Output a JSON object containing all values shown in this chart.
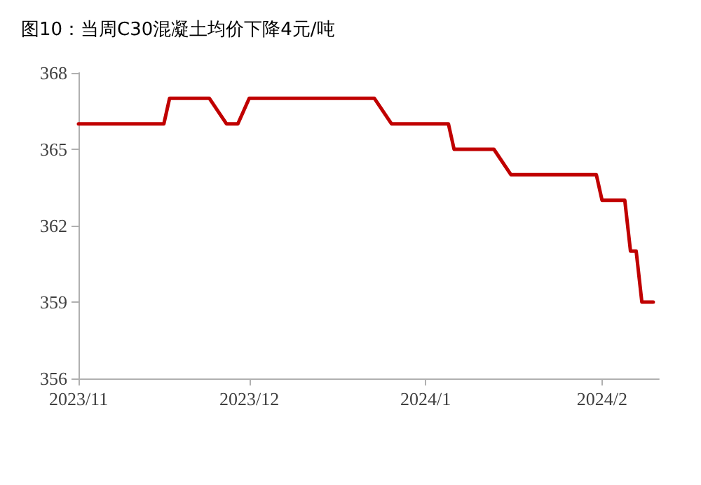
{
  "chart_data": {
    "type": "line",
    "title": "图10：当周C30混凝土均价下降4元/吨",
    "x": [
      "2023-11-01",
      "2023-11-16",
      "2023-11-17",
      "2023-11-24",
      "2023-11-27",
      "2023-11-29",
      "2023-12-01",
      "2023-12-23",
      "2023-12-26",
      "2024-01-05",
      "2024-01-06",
      "2024-01-13",
      "2024-01-16",
      "2024-01-31",
      "2024-02-01",
      "2024-02-05",
      "2024-02-06",
      "2024-02-07",
      "2024-02-08",
      "2024-02-10"
    ],
    "series": [
      {
        "color": "#c00000",
        "values": [
          366,
          366,
          367,
          367,
          366,
          366,
          367,
          367,
          366,
          366,
          365,
          365,
          364,
          364,
          363,
          363,
          361,
          361,
          359,
          359
        ]
      }
    ],
    "xlim": [
      "2023-11-01",
      "2024-02-11"
    ],
    "xticks": [
      {
        "value": "2023-11-01",
        "label": "2023/11"
      },
      {
        "value": "2023-12-01",
        "label": "2023/12"
      },
      {
        "value": "2024-01-01",
        "label": "2024/1"
      },
      {
        "value": "2024-02-01",
        "label": "2024/2"
      }
    ],
    "ylim": [
      356,
      368
    ],
    "yticks": [
      356,
      359,
      362,
      365,
      368
    ],
    "grid": false,
    "marker": "none",
    "line_style": "solid"
  }
}
